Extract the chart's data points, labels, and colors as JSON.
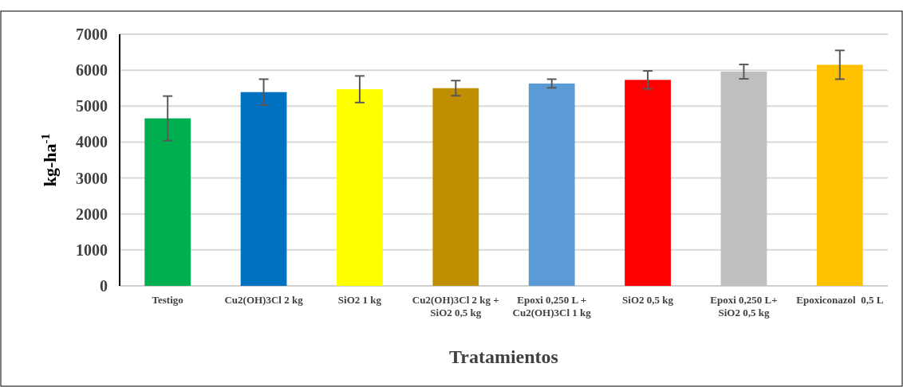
{
  "chart_data": {
    "type": "bar",
    "xlabel": "Tratamientos",
    "ylabel": "kg-ha$^{-1}$",
    "categories": [
      "Testigo",
      "Cu2(OH)3Cl 2 kg",
      "SiO2 1 kg",
      "Cu2(OH)3Cl 2 kg + SiO2 0,5 kg",
      "Epoxi 0,250 L + Cu2(OH)3Cl 1 kg",
      "SiO2 0,5 kg",
      "Epoxi 0,250 L+ SiO2 0,5 kg",
      "Epoxiconazol  0,5 L"
    ],
    "values": [
      4660,
      5390,
      5470,
      5500,
      5630,
      5730,
      5960,
      6150
    ],
    "errors": [
      620,
      360,
      370,
      210,
      120,
      250,
      200,
      400
    ],
    "colors": [
      "#00b050",
      "#0070c0",
      "#ffff00",
      "#bf8f00",
      "#5b9bd5",
      "#ff0000",
      "#bfbfbf",
      "#ffc000"
    ],
    "ylim": [
      0,
      7000
    ],
    "yticks": [
      0,
      1000,
      2000,
      3000,
      4000,
      5000,
      6000,
      7000
    ],
    "grid": "y"
  }
}
